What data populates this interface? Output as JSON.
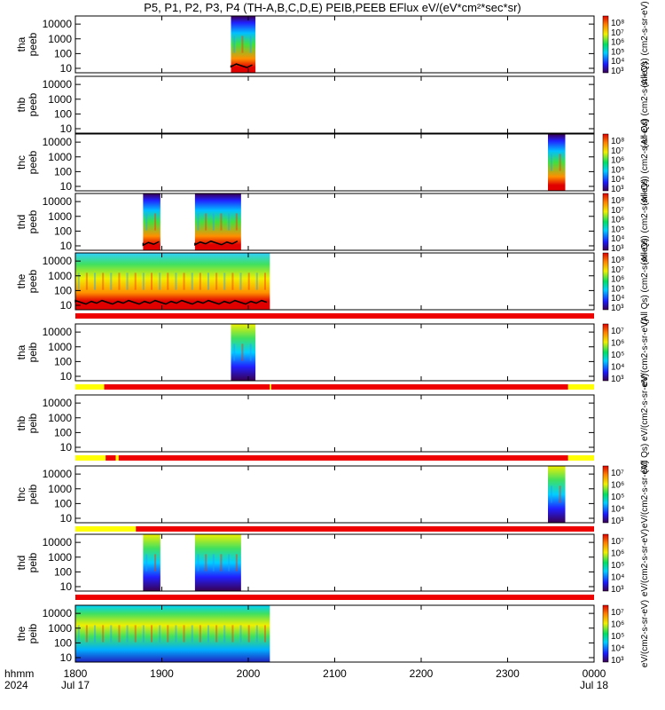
{
  "chart_data": {
    "type": "heatmap",
    "title": "P5, P1, P2, P3, P4 (TH-A,B,C,D,E) PEIB,PEEB EFlux eV/(eV*cm²*sec*sr)",
    "x_tick_labels": [
      "1800",
      "1900",
      "2000",
      "2100",
      "2200",
      "2300",
      "0000"
    ],
    "x_range_hhmm": [
      "1800",
      "0000"
    ],
    "x_label": [
      "hhmm",
      "2024"
    ],
    "x_date_labels": {
      "start": "Jul 17",
      "end": "Jul 18"
    },
    "y_tick_labels": [
      "10000",
      "1000",
      "100",
      "10"
    ],
    "y_scale": "log",
    "colorscale": "rainbow (purple-blue-cyan-green-yellow-red), log",
    "panels": [
      {
        "name": [
          "tha",
          "peeb"
        ],
        "colorbar_ticks": [
          "10⁸",
          "10⁷",
          "10⁶",
          "10⁵",
          "10⁴",
          "10³"
        ],
        "colorbar_label": "(All Qs) (cm2-s-sr-eV)",
        "data_intervals": [
          [
            "1948",
            "2005"
          ]
        ],
        "black_trace": true,
        "status_bar": null
      },
      {
        "name": [
          "thb",
          "peeb"
        ],
        "colorbar_ticks": [],
        "colorbar_label": "(All Qs) (cm2-s-sr-eV)",
        "data_intervals": [],
        "black_trace": false,
        "status_bar": null
      },
      {
        "name": [
          "thc",
          "peeb"
        ],
        "colorbar_ticks": [
          "10⁸",
          "10⁷",
          "10⁶",
          "10⁵",
          "10⁴",
          "10³"
        ],
        "colorbar_label": "(All Qs) (cm2-s-sr-eV)",
        "data_intervals": [
          [
            "2328",
            "2340"
          ]
        ],
        "black_trace": false,
        "status_bar": null
      },
      {
        "name": [
          "thd",
          "peeb"
        ],
        "colorbar_ticks": [
          "10⁸",
          "10⁷",
          "10⁶",
          "10⁵",
          "10⁴",
          "10³"
        ],
        "colorbar_label": "(All Qs) (cm2-s-sr-eV)",
        "data_intervals": [
          [
            "1847",
            "1859"
          ],
          [
            "1923",
            "1955"
          ]
        ],
        "black_trace": true,
        "status_bar": null
      },
      {
        "name": [
          "the",
          "peeb"
        ],
        "colorbar_ticks": [
          "10⁸",
          "10⁷",
          "10⁶",
          "10⁵",
          "10⁴",
          "10³"
        ],
        "colorbar_label": "(All Qs) (cm2-s-sr-eV)",
        "data_intervals": [
          [
            "1800",
            "2015"
          ]
        ],
        "black_trace": true,
        "status_bar": [
          [
            "1800",
            "0000",
            "red"
          ]
        ]
      },
      {
        "name": [
          "tha",
          "peib"
        ],
        "colorbar_ticks": [
          "10⁷",
          "10⁶",
          "10⁵",
          "10⁴",
          "10³"
        ],
        "colorbar_label": "eV/(cm2-s-sr-eV)",
        "data_intervals": [
          [
            "1948",
            "2005"
          ]
        ],
        "black_trace": false,
        "status_bar": [
          [
            "1800",
            "1820",
            "yellow"
          ],
          [
            "1820",
            "2015",
            "red"
          ],
          [
            "2015",
            "2016",
            "yellow"
          ],
          [
            "2016",
            "2342",
            "red"
          ],
          [
            "2342",
            "0000",
            "yellow"
          ]
        ]
      },
      {
        "name": [
          "thb",
          "peib"
        ],
        "colorbar_ticks": [],
        "colorbar_label": "(All Qs) eV/(cm2-s-sr-eV)",
        "data_intervals": [],
        "black_trace": false,
        "status_bar": [
          [
            "1800",
            "1821",
            "yellow"
          ],
          [
            "1821",
            "1828",
            "red"
          ],
          [
            "1828",
            "1830",
            "yellow"
          ],
          [
            "1830",
            "2342",
            "red"
          ],
          [
            "2342",
            "0000",
            "yellow"
          ]
        ]
      },
      {
        "name": [
          "thc",
          "peib"
        ],
        "colorbar_ticks": [
          "10⁷",
          "10⁶",
          "10⁵",
          "10⁴",
          "10³"
        ],
        "colorbar_label": "eV/(cm2-s-sr-eV)",
        "data_intervals": [
          [
            "2328",
            "2340"
          ]
        ],
        "black_trace": false,
        "status_bar": [
          [
            "1800",
            "1842",
            "yellow"
          ],
          [
            "1842",
            "0000",
            "red"
          ]
        ]
      },
      {
        "name": [
          "thd",
          "peib"
        ],
        "colorbar_ticks": [
          "10⁷",
          "10⁶",
          "10⁵",
          "10⁴",
          "10³"
        ],
        "colorbar_label": "eV/(cm2-s-sr-eV)",
        "data_intervals": [
          [
            "1847",
            "1859"
          ],
          [
            "1923",
            "1955"
          ]
        ],
        "black_trace": false,
        "status_bar": [
          [
            "1800",
            "0000",
            "red"
          ]
        ]
      },
      {
        "name": [
          "the",
          "peib"
        ],
        "colorbar_ticks": [
          "10⁷",
          "10⁶",
          "10⁵",
          "10⁴",
          "10³"
        ],
        "colorbar_label": "eV/(cm2-s-sr-eV)",
        "data_intervals": [
          [
            "1800",
            "2015"
          ]
        ],
        "black_trace": false,
        "status_bar": null
      }
    ]
  }
}
